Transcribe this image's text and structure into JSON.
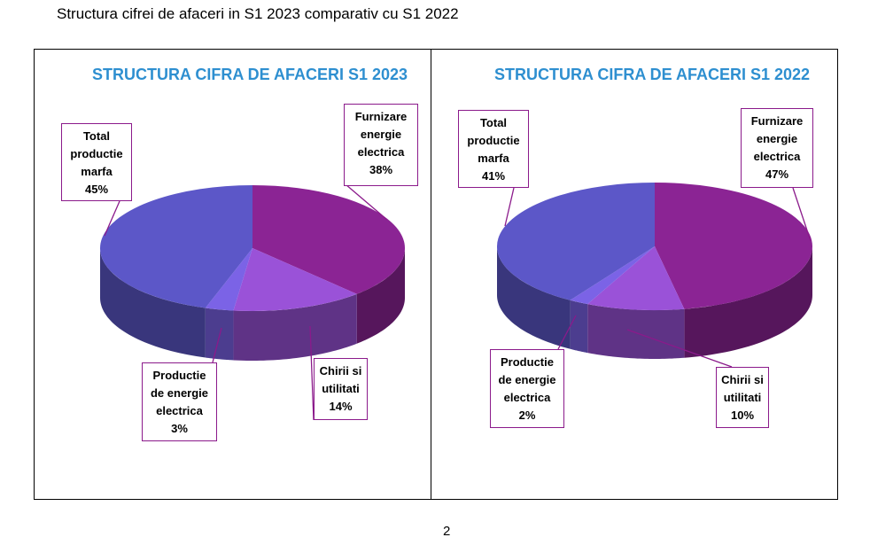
{
  "document": {
    "heading": "Structura cifrei de afaceri  in S1 2023 comparativ cu S1 2022",
    "page_number": "2"
  },
  "colors": {
    "title": "#2e8fd0",
    "total_productie": "#5c57c8",
    "furnizare": "#8b2494",
    "chirii": "#9a52d8",
    "productie_energie": "#7b63e6",
    "callout_border": "#8b1a8b"
  },
  "chart_data": [
    {
      "type": "pie",
      "title": "STRUCTURA CIFRA DE AFACERI S1  2023",
      "slices": [
        {
          "label": [
            "Furnizare",
            "energie",
            "electrica"
          ],
          "value": 38,
          "value_label": "38%"
        },
        {
          "label": [
            "Chirii si",
            "utilitati"
          ],
          "value": 14,
          "value_label": "14%"
        },
        {
          "label": [
            "Productie",
            "de energie",
            "electrica"
          ],
          "value": 3,
          "value_label": "3%"
        },
        {
          "label": [
            "Total",
            "productie",
            "marfa"
          ],
          "value": 45,
          "value_label": "45%"
        }
      ]
    },
    {
      "type": "pie",
      "title": "STRUCTURA CIFRA DE AFACERI  S1 2022",
      "slices": [
        {
          "label": [
            "Furnizare",
            "energie",
            "electrica"
          ],
          "value": 47,
          "value_label": "47%"
        },
        {
          "label": [
            "Chirii si",
            "utilitati"
          ],
          "value": 10,
          "value_label": "10%"
        },
        {
          "label": [
            "Productie",
            "de energie",
            "electrica"
          ],
          "value": 2,
          "value_label": "2%"
        },
        {
          "label": [
            "Total",
            "productie",
            "marfa"
          ],
          "value": 41,
          "value_label": "41%"
        }
      ]
    }
  ]
}
